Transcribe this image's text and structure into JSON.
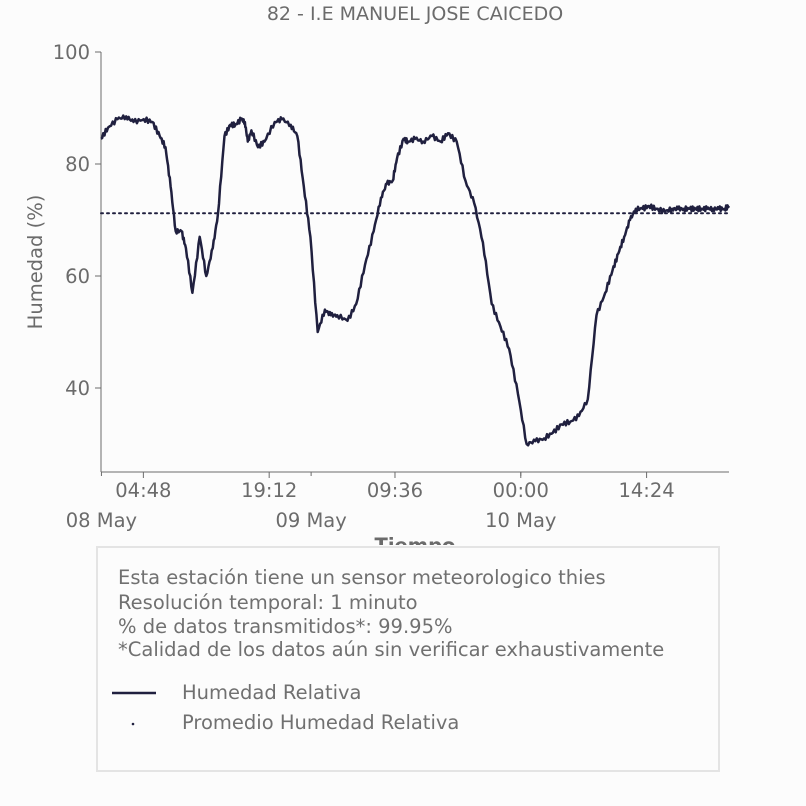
{
  "colors": {
    "series": "#20203f",
    "text": "#6b6b6b",
    "axis": "#6b6b6b"
  },
  "chart_data": {
    "type": "line",
    "title": "82 - I.E MANUEL JOSE CAICEDO",
    "xlabel": "Tiempo",
    "ylabel": "Humedad (%)",
    "ylim": [
      25,
      100
    ],
    "xlim": [
      "2024-05-07T23:57",
      "2024-05-10T23:50"
    ],
    "yticks": [
      40,
      60,
      80,
      100
    ],
    "xticks_time": [
      {
        "t": "2024-05-08T04:48",
        "label": "04:48"
      },
      {
        "t": "2024-05-08T19:12",
        "label": "19:12"
      },
      {
        "t": "2024-05-09T09:36",
        "label": "09:36"
      },
      {
        "t": "2024-05-10T00:00",
        "label": "00:00"
      },
      {
        "t": "2024-05-10T14:24",
        "label": "14:24"
      }
    ],
    "xticks_date": [
      {
        "t": "2024-05-08T00:00",
        "label": "08 May"
      },
      {
        "t": "2024-05-09T00:00",
        "label": "09 May"
      },
      {
        "t": "2024-05-10T00:00",
        "label": "10 May"
      }
    ],
    "grid": false,
    "legend_position": "bottom-left",
    "series": [
      {
        "name": "Humedad Relativa",
        "style": "solid",
        "x": [
          "2024-05-07T23:57",
          "2024-05-08T00:45",
          "2024-05-08T01:50",
          "2024-05-08T02:50",
          "2024-05-08T03:40",
          "2024-05-08T04:50",
          "2024-05-08T05:50",
          "2024-05-08T06:40",
          "2024-05-08T07:20",
          "2024-05-08T07:55",
          "2024-05-08T08:30",
          "2024-05-08T09:10",
          "2024-05-08T09:40",
          "2024-05-08T10:25",
          "2024-05-08T11:15",
          "2024-05-08T12:00",
          "2024-05-08T12:45",
          "2024-05-08T13:20",
          "2024-05-08T14:05",
          "2024-05-08T14:45",
          "2024-05-08T15:20",
          "2024-05-08T16:00",
          "2024-05-08T16:25",
          "2024-05-08T16:45",
          "2024-05-08T17:10",
          "2024-05-08T17:55",
          "2024-05-08T18:40",
          "2024-05-08T19:50",
          "2024-05-08T20:40",
          "2024-05-08T21:40",
          "2024-05-08T22:25",
          "2024-05-08T23:10",
          "2024-05-08T23:55",
          "2024-05-09T00:45",
          "2024-05-09T01:35",
          "2024-05-09T02:15",
          "2024-05-09T03:00",
          "2024-05-09T04:10",
          "2024-05-09T05:10",
          "2024-05-09T06:10",
          "2024-05-09T07:10",
          "2024-05-09T08:00",
          "2024-05-09T08:40",
          "2024-05-09T09:20",
          "2024-05-09T09:50",
          "2024-05-09T10:35",
          "2024-05-09T11:05",
          "2024-05-09T11:55",
          "2024-05-09T12:50",
          "2024-05-09T13:50",
          "2024-05-09T14:50",
          "2024-05-09T15:40",
          "2024-05-09T16:40",
          "2024-05-09T17:40",
          "2024-05-09T18:40",
          "2024-05-09T19:40",
          "2024-05-09T20:40",
          "2024-05-09T21:40",
          "2024-05-09T22:40",
          "2024-05-09T23:40",
          "2024-05-10T00:40",
          "2024-05-10T01:40",
          "2024-05-10T02:40",
          "2024-05-10T03:40",
          "2024-05-10T04:40",
          "2024-05-10T05:40",
          "2024-05-10T06:40",
          "2024-05-10T07:40",
          "2024-05-10T08:40",
          "2024-05-10T09:40",
          "2024-05-10T10:30",
          "2024-05-10T11:10",
          "2024-05-10T11:50",
          "2024-05-10T12:30",
          "2024-05-10T13:10",
          "2024-05-10T13:55",
          "2024-05-10T14:40",
          "2024-05-10T15:30",
          "2024-05-10T16:30",
          "2024-05-10T17:20",
          "2024-05-10T18:00",
          "2024-05-10T18:40",
          "2024-05-10T19:20",
          "2024-05-10T20:00",
          "2024-05-10T20:40",
          "2024-05-10T21:20",
          "2024-05-10T22:00",
          "2024-05-10T22:40",
          "2024-05-10T23:20",
          "2024-05-10T23:50"
        ],
        "y": [
          84.5,
          86.5,
          88,
          88.5,
          87.5,
          88,
          87.5,
          85,
          83,
          76,
          68,
          68,
          65,
          57,
          67,
          60,
          65,
          71,
          85,
          87,
          87,
          88,
          87.5,
          84,
          86,
          83,
          84,
          87.5,
          88,
          87,
          85,
          76,
          67,
          50,
          54,
          53,
          53,
          52,
          55,
          62,
          68,
          74,
          76.5,
          77,
          81,
          84.5,
          84,
          84.5,
          84,
          85,
          84,
          85.5,
          84,
          77,
          73,
          66,
          55,
          51,
          47,
          39,
          30,
          30.5,
          31,
          32,
          33.5,
          34,
          35,
          38,
          53,
          57,
          61,
          64,
          67,
          70,
          72,
          72,
          72.5,
          72,
          71.5,
          72,
          72,
          72,
          72,
          72,
          72,
          72,
          72,
          72,
          72,
          72.5
        ]
      },
      {
        "name": "Promedio Humedad Relativa",
        "style": "dotted",
        "value": 71.2
      }
    ]
  },
  "info": {
    "line1": "Esta estación tiene un sensor meteorologico thies",
    "line2": "Resolución temporal: 1 minuto",
    "line3": "% de datos transmitidos*: 99.95%",
    "line4": "*Calidad de los datos aún sin verificar exhaustivamente"
  },
  "legend": {
    "item1": "Humedad Relativa",
    "item2": "Promedio Humedad Relativa"
  }
}
